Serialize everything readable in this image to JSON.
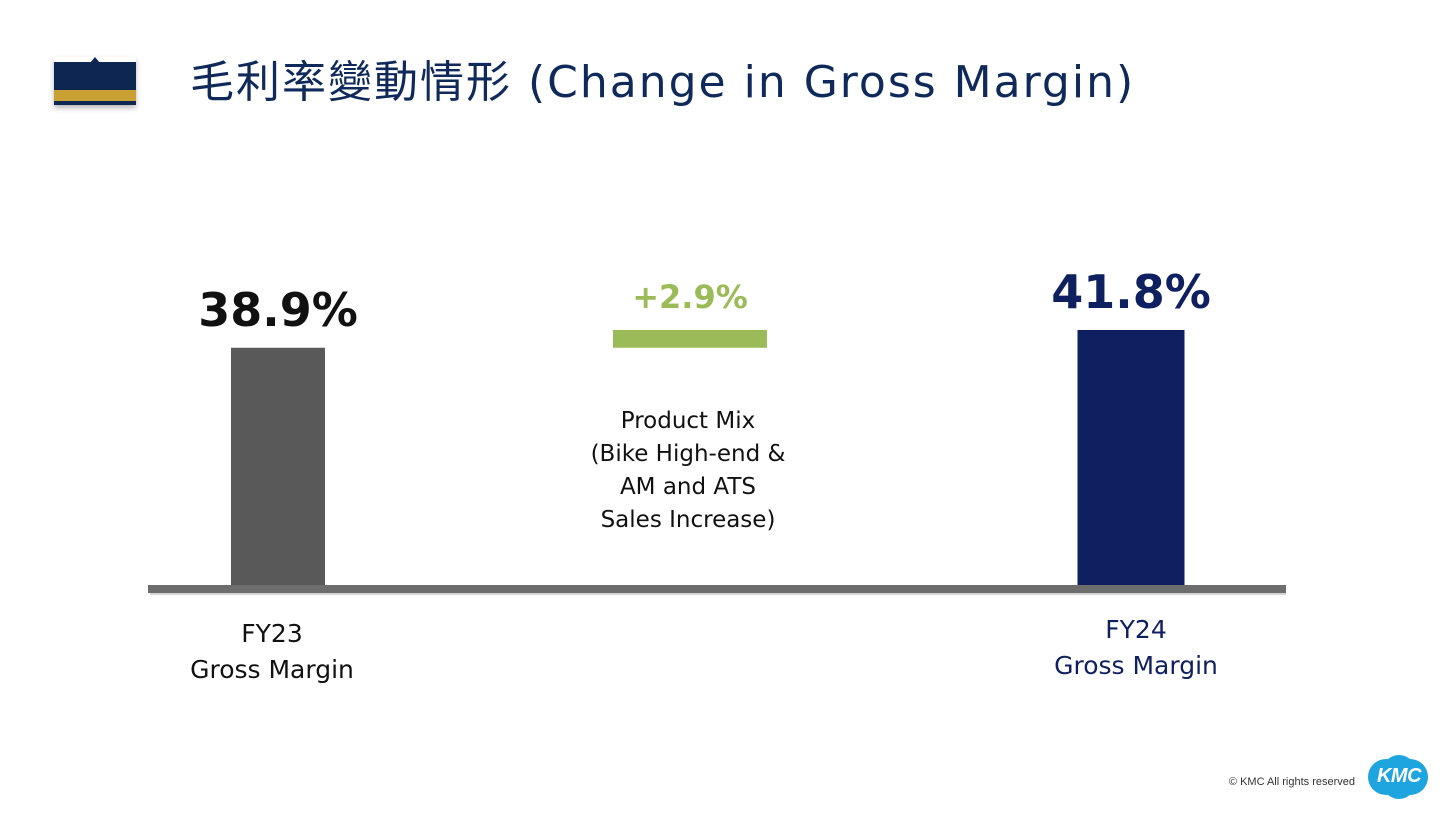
{
  "header": {
    "title": "毛利率變動情形 (Change in Gross Margin)"
  },
  "chart_data": {
    "type": "bar",
    "subtype": "waterfall",
    "title": "毛利率變動情形 (Change in Gross Margin)",
    "categories": [
      "FY23\nGross Margin",
      "Product Mix\n(Bike High-end &\nAM and ATS\nSales Increase)",
      "FY24\nGross Margin"
    ],
    "values": [
      38.9,
      2.9,
      41.8
    ],
    "value_labels": [
      "38.9%",
      "+2.9%",
      "41.8%"
    ],
    "bar_kinds": [
      "total",
      "increase",
      "total"
    ],
    "ylim": [
      0,
      42
    ],
    "grid": false,
    "legend": "none",
    "xlabel": "",
    "ylabel": "",
    "colors": {
      "start_total": "#595959",
      "increase": "#9bbb59",
      "end_total": "#0f2060",
      "axis": "#6d6d6d",
      "start_label": "#111111",
      "increase_label": "#9bbb59",
      "end_label": "#0f2060",
      "end_category_label": "#0f2060",
      "category_label": "#111111"
    }
  },
  "footer": {
    "copyright": "© KMC All rights reserved",
    "logo_text": "KMC"
  },
  "theme": {
    "title_color": "#0f2a5a",
    "marker_navy": "#0d2652",
    "marker_gold": "#c9a132",
    "logo_blue": "#1ea5e0"
  }
}
